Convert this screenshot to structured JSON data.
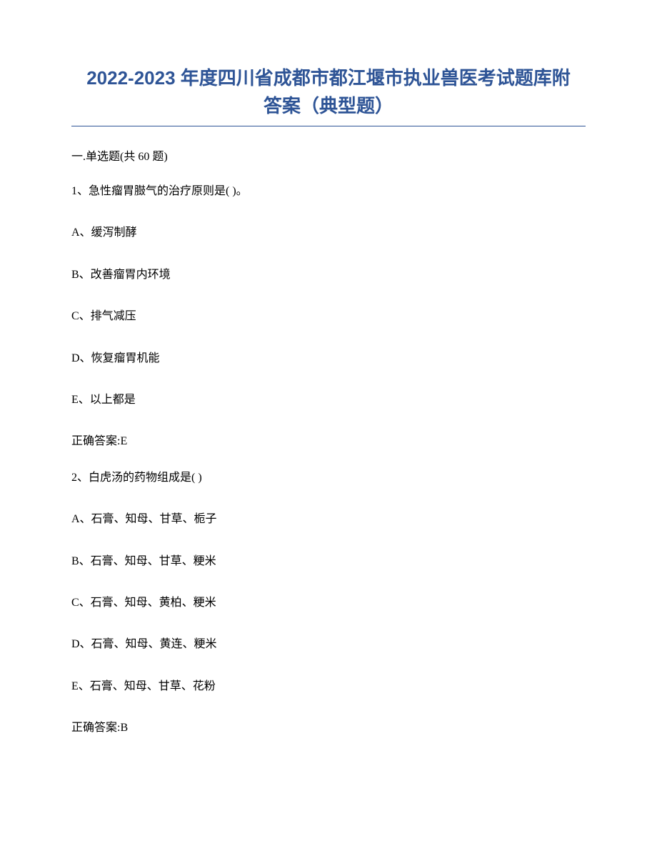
{
  "title_line1": "2022-2023 年度四川省成都市都江堰市执业兽医考试题库附",
  "title_line2": "答案（典型题）",
  "title_color": "#2e5496",
  "title_fontsize": 26,
  "body_fontsize": 16,
  "body_color": "#000000",
  "background_color": "#ffffff",
  "underline_color": "#2e5496",
  "section_header": "一.单选题(共 60 题)",
  "questions": [
    {
      "number": "1、",
      "text": "急性瘤胃臌气的治疗原则是( )。",
      "options": [
        "A、缓泻制酵",
        "B、改善瘤胃内环境",
        "C、排气减压",
        "D、恢复瘤胃机能",
        "E、以上都是"
      ],
      "answer": "正确答案:E"
    },
    {
      "number": "2、",
      "text": "白虎汤的药物组成是( )",
      "options": [
        "A、石膏、知母、甘草、栀子",
        "B、石膏、知母、甘草、粳米",
        "C、石膏、知母、黄柏、粳米",
        "D、石膏、知母、黄连、粳米",
        "E、石膏、知母、甘草、花粉"
      ],
      "answer": "正确答案:B"
    }
  ]
}
